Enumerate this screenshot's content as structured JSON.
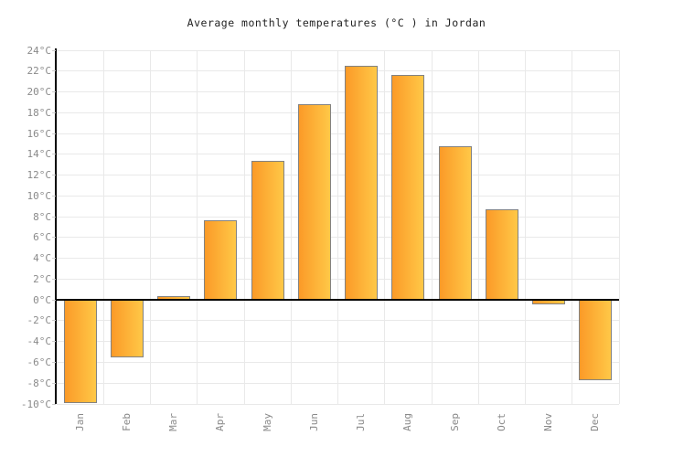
{
  "title": "Average monthly temperatures (°C ) in Jordan",
  "chart_data": {
    "type": "bar",
    "title": "Average monthly temperatures (°C ) in Jordan",
    "categories": [
      "Jan",
      "Feb",
      "Mar",
      "Apr",
      "May",
      "Jun",
      "Jul",
      "Aug",
      "Sep",
      "Oct",
      "Nov",
      "Dec"
    ],
    "values": [
      -9.9,
      -5.5,
      0.4,
      7.7,
      13.4,
      18.8,
      22.5,
      21.6,
      14.8,
      8.7,
      -0.4,
      -7.7
    ],
    "unit": "°C",
    "ylim": [
      -10,
      24
    ],
    "ytick_step": 2,
    "ytick_suffix": "°C",
    "xlabel": "",
    "ylabel": "",
    "grid": true,
    "legend": false
  },
  "style": {
    "bar_gradient_left": "#fb9a28",
    "bar_gradient_right": "#ffc847",
    "bar_border": "#828282",
    "grid_color": "#e9e9e9",
    "axis_color": "#000000",
    "tick_label_color": "#8a8a8a",
    "title_color": "#222222",
    "background": "#ffffff"
  }
}
